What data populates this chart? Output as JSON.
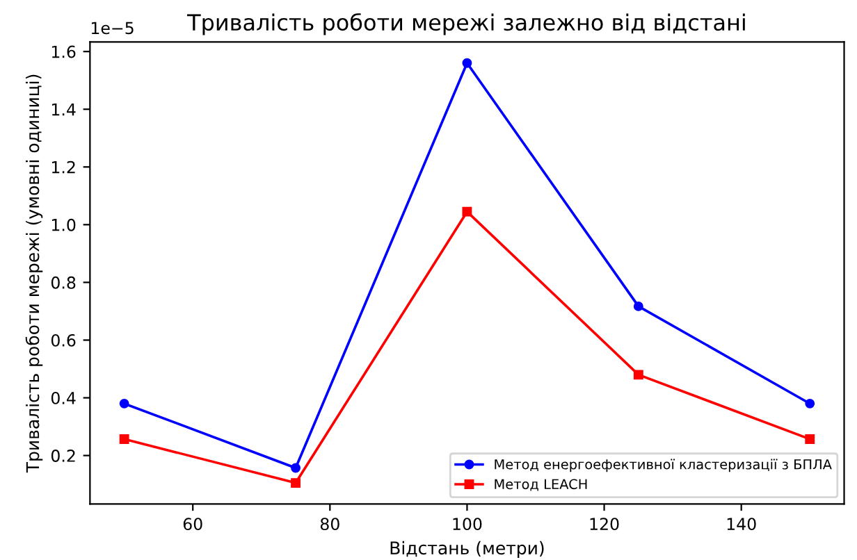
{
  "chart_data": {
    "type": "line",
    "title": "Тривалість роботи мережі залежно від відстані",
    "xlabel": "Відстань (метри)",
    "ylabel": "Тривалість роботи мережі (умовні одиниці)",
    "annotations": [
      "1e−5"
    ],
    "x": [
      50,
      75,
      100,
      125,
      150
    ],
    "series": [
      {
        "name": "Метод енергоефективної кластеризації з БПЛА",
        "color": "#0000ff",
        "marker": "circle",
        "values": [
          0.38,
          0.157,
          1.56,
          0.717,
          0.38
        ]
      },
      {
        "name": "Метод LEACH",
        "color": "#ff0000",
        "marker": "square",
        "values": [
          0.257,
          0.105,
          1.045,
          0.48,
          0.257
        ]
      }
    ],
    "xlim": [
      45,
      155
    ],
    "xticks": [
      60,
      80,
      100,
      120,
      140
    ],
    "ylim": [
      0.032,
      1.633
    ],
    "yticks": [
      {
        "value": 0.2,
        "label": "0.2"
      },
      {
        "value": 0.4,
        "label": "0.4"
      },
      {
        "value": 0.6,
        "label": "0.6"
      },
      {
        "value": 0.8,
        "label": "0.8"
      },
      {
        "value": 1.0,
        "label": "1.0"
      },
      {
        "value": 1.2,
        "label": "1.2"
      },
      {
        "value": 1.4,
        "label": "1.4"
      },
      {
        "value": 1.6,
        "label": "1.6"
      }
    ],
    "legend": "bottom right",
    "grid": false,
    "line_style": "solid"
  }
}
